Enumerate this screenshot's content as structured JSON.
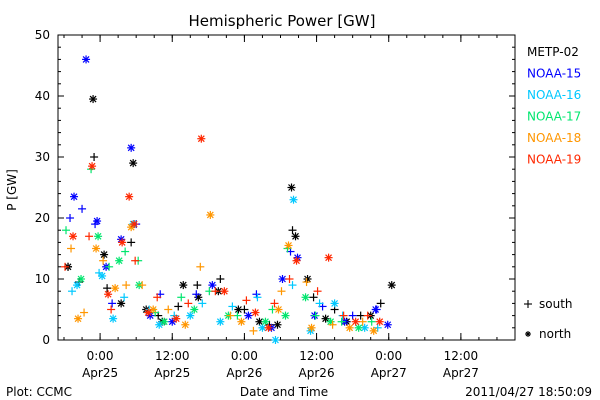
{
  "chart_data": {
    "type": "scatter",
    "title": "Hemispheric Power [GW]",
    "xlabel": "Date and Time",
    "ylabel": "P [GW]",
    "xlim": [
      "2011-04-24T17:00",
      "2011-04-27T21:00"
    ],
    "ylim": [
      0,
      50
    ],
    "y_ticks": [
      0,
      10,
      20,
      30,
      40,
      50
    ],
    "x_ticks": [
      {
        "time": "2011-04-25T00:00",
        "label1": "0:00",
        "label2": "Apr25"
      },
      {
        "time": "2011-04-25T12:00",
        "label1": "12:00",
        "label2": "Apr25"
      },
      {
        "time": "2011-04-26T00:00",
        "label1": "0:00",
        "label2": "Apr26"
      },
      {
        "time": "2011-04-26T12:00",
        "label1": "12:00",
        "label2": "Apr26"
      },
      {
        "time": "2011-04-27T00:00",
        "label1": "0:00",
        "label2": "Apr27"
      },
      {
        "time": "2011-04-27T12:00",
        "label1": "12:00",
        "label2": "Apr27"
      }
    ],
    "grid": false,
    "legend_position": "right",
    "marker_legend": [
      {
        "marker": "+",
        "label": "south"
      },
      {
        "marker": "*",
        "label": "north"
      }
    ],
    "series": [
      {
        "name": "METP-02",
        "color": "#000000",
        "south": [
          [
            "2011-04-24T18:40",
            12.0
          ],
          [
            "2011-04-24T20:30",
            9.5
          ],
          [
            "2011-04-24T23:00",
            30.0
          ],
          [
            "2011-04-25T01:10",
            8.5
          ],
          [
            "2011-04-25T05:10",
            16.0
          ],
          [
            "2011-04-25T09:40",
            4.0
          ],
          [
            "2011-04-25T13:00",
            5.5
          ],
          [
            "2011-04-25T16:10",
            9.0
          ],
          [
            "2011-04-25T20:00",
            10.0
          ],
          [
            "2011-04-26T00:00",
            5.0
          ],
          [
            "2011-04-26T04:10",
            2.5
          ],
          [
            "2011-04-26T08:00",
            18.0
          ],
          [
            "2011-04-26T11:30",
            7.0
          ],
          [
            "2011-04-26T15:00",
            5.0
          ],
          [
            "2011-04-26T19:20",
            4.0
          ],
          [
            "2011-04-26T22:40",
            6.0
          ]
        ],
        "north": [
          [
            "2011-04-24T18:40",
            12.0
          ],
          [
            "2011-04-24T22:50",
            39.5
          ],
          [
            "2011-04-25T00:40",
            14.0
          ],
          [
            "2011-04-25T03:30",
            6.0
          ],
          [
            "2011-04-25T05:30",
            29.0
          ],
          [
            "2011-04-25T07:40",
            5.0
          ],
          [
            "2011-04-25T10:20",
            3.0
          ],
          [
            "2011-04-25T13:50",
            9.0
          ],
          [
            "2011-04-25T16:20",
            7.0
          ],
          [
            "2011-04-25T19:40",
            8.0
          ],
          [
            "2011-04-25T23:00",
            5.0
          ],
          [
            "2011-04-26T02:30",
            3.0
          ],
          [
            "2011-04-26T05:30",
            2.5
          ],
          [
            "2011-04-26T07:50",
            25.0
          ],
          [
            "2011-04-26T08:30",
            17.0
          ],
          [
            "2011-04-26T10:30",
            10.0
          ],
          [
            "2011-04-26T13:30",
            3.5
          ],
          [
            "2011-04-26T17:00",
            3.0
          ],
          [
            "2011-04-26T21:00",
            4.0
          ],
          [
            "2011-04-27T00:30",
            9.0
          ]
        ]
      },
      {
        "name": "NOAA-15",
        "color": "#0000ff",
        "south": [
          [
            "2011-04-24T19:00",
            20.0
          ],
          [
            "2011-04-24T21:00",
            21.5
          ],
          [
            "2011-04-24T23:10",
            19.0
          ],
          [
            "2011-04-25T02:00",
            6.0
          ],
          [
            "2011-04-25T06:00",
            19.0
          ],
          [
            "2011-04-25T10:00",
            7.5
          ],
          [
            "2011-04-25T16:00",
            7.5
          ],
          [
            "2011-04-26T02:00",
            7.5
          ],
          [
            "2011-04-26T07:40",
            14.5
          ],
          [
            "2011-04-26T13:00",
            5.5
          ],
          [
            "2011-04-26T18:00",
            4.0
          ],
          [
            "2011-04-26T22:00",
            5.0
          ]
        ],
        "north": [
          [
            "2011-04-24T19:40",
            23.5
          ],
          [
            "2011-04-24T21:40",
            46.0
          ],
          [
            "2011-04-24T23:30",
            19.5
          ],
          [
            "2011-04-25T01:00",
            12.0
          ],
          [
            "2011-04-25T03:30",
            16.5
          ],
          [
            "2011-04-25T05:10",
            31.5
          ],
          [
            "2011-04-25T08:20",
            4.0
          ],
          [
            "2011-04-25T12:00",
            3.0
          ],
          [
            "2011-04-25T18:40",
            9.0
          ],
          [
            "2011-04-26T00:40",
            4.0
          ],
          [
            "2011-04-26T04:30",
            2.0
          ],
          [
            "2011-04-26T06:20",
            10.0
          ],
          [
            "2011-04-26T08:50",
            13.5
          ],
          [
            "2011-04-26T11:40",
            4.0
          ],
          [
            "2011-04-26T16:40",
            3.0
          ],
          [
            "2011-04-26T21:50",
            5.0
          ],
          [
            "2011-04-26T23:50",
            2.5
          ]
        ]
      },
      {
        "name": "NOAA-16",
        "color": "#00c8ff",
        "south": [
          [
            "2011-04-24T19:20",
            8.0
          ],
          [
            "2011-04-24T23:50",
            11.0
          ],
          [
            "2011-04-25T04:00",
            7.0
          ],
          [
            "2011-04-25T08:10",
            5.0
          ],
          [
            "2011-04-25T12:20",
            4.0
          ],
          [
            "2011-04-25T17:00",
            6.0
          ],
          [
            "2011-04-25T22:00",
            5.5
          ],
          [
            "2011-04-26T02:10",
            7.0
          ],
          [
            "2011-04-26T08:00",
            9.0
          ],
          [
            "2011-04-26T12:30",
            6.0
          ],
          [
            "2011-04-26T16:20",
            4.0
          ],
          [
            "2011-04-26T22:10",
            2.0
          ]
        ],
        "north": [
          [
            "2011-04-24T20:10",
            9.0
          ],
          [
            "2011-04-25T00:20",
            10.5
          ],
          [
            "2011-04-25T02:10",
            3.5
          ],
          [
            "2011-04-25T05:30",
            19.0
          ],
          [
            "2011-04-25T09:50",
            2.5
          ],
          [
            "2011-04-25T15:00",
            4.0
          ],
          [
            "2011-04-25T20:00",
            3.0
          ],
          [
            "2011-04-26T03:00",
            2.0
          ],
          [
            "2011-04-26T05:10",
            0.0
          ],
          [
            "2011-04-26T08:10",
            23.0
          ],
          [
            "2011-04-26T11:00",
            1.5
          ],
          [
            "2011-04-26T15:00",
            6.0
          ],
          [
            "2011-04-26T20:00",
            2.0
          ]
        ]
      },
      {
        "name": "NOAA-17",
        "color": "#00e66e",
        "south": [
          [
            "2011-04-24T18:20",
            18.0
          ],
          [
            "2011-04-24T22:30",
            28.0
          ],
          [
            "2011-04-25T01:30",
            12.0
          ],
          [
            "2011-04-25T04:10",
            14.5
          ],
          [
            "2011-04-25T06:20",
            13.0
          ],
          [
            "2011-04-25T09:10",
            4.5
          ],
          [
            "2011-04-25T13:30",
            7.0
          ],
          [
            "2011-04-25T18:10",
            8.0
          ],
          [
            "2011-04-25T22:50",
            4.0
          ],
          [
            "2011-04-26T04:40",
            5.0
          ],
          [
            "2011-04-26T07:10",
            15.0
          ],
          [
            "2011-04-26T11:50",
            4.0
          ],
          [
            "2011-04-26T16:10",
            3.0
          ],
          [
            "2011-04-26T21:10",
            3.0
          ]
        ],
        "north": [
          [
            "2011-04-24T20:50",
            10.0
          ],
          [
            "2011-04-24T23:40",
            17.0
          ],
          [
            "2011-04-25T03:10",
            13.0
          ],
          [
            "2011-04-25T06:30",
            9.0
          ],
          [
            "2011-04-25T10:40",
            3.0
          ],
          [
            "2011-04-25T15:40",
            5.0
          ],
          [
            "2011-04-25T21:20",
            4.0
          ],
          [
            "2011-04-26T03:30",
            3.0
          ],
          [
            "2011-04-26T06:50",
            4.0
          ],
          [
            "2011-04-26T10:10",
            7.0
          ],
          [
            "2011-04-26T14:20",
            3.0
          ],
          [
            "2011-04-26T19:00",
            2.0
          ]
        ]
      },
      {
        "name": "NOAA-18",
        "color": "#ff9600",
        "south": [
          [
            "2011-04-24T19:10",
            15.0
          ],
          [
            "2011-04-24T21:20",
            4.5
          ],
          [
            "2011-04-25T00:30",
            13.0
          ],
          [
            "2011-04-25T04:20",
            9.0
          ],
          [
            "2011-04-25T07:00",
            9.0
          ],
          [
            "2011-04-25T11:20",
            5.0
          ],
          [
            "2011-04-25T16:40",
            12.0
          ],
          [
            "2011-04-25T21:40",
            4.0
          ],
          [
            "2011-04-26T01:30",
            1.5
          ],
          [
            "2011-04-26T06:10",
            8.0
          ],
          [
            "2011-04-26T10:20",
            9.5
          ],
          [
            "2011-04-26T14:40",
            2.5
          ],
          [
            "2011-04-26T19:40",
            3.0
          ]
        ],
        "north": [
          [
            "2011-04-24T20:20",
            3.5
          ],
          [
            "2011-04-24T23:20",
            15.0
          ],
          [
            "2011-04-25T02:30",
            8.5
          ],
          [
            "2011-04-25T05:10",
            18.5
          ],
          [
            "2011-04-25T08:50",
            5.0
          ],
          [
            "2011-04-25T14:10",
            2.5
          ],
          [
            "2011-04-25T18:20",
            20.5
          ],
          [
            "2011-04-25T23:30",
            3.0
          ],
          [
            "2011-04-26T05:40",
            5.0
          ],
          [
            "2011-04-26T07:20",
            15.5
          ],
          [
            "2011-04-26T11:10",
            2.0
          ],
          [
            "2011-04-26T17:30",
            2.0
          ],
          [
            "2011-04-26T21:30",
            1.5
          ]
        ]
      },
      {
        "name": "NOAA-19",
        "color": "#ff2800",
        "south": [
          [
            "2011-04-24T18:10",
            12.0
          ],
          [
            "2011-04-24T22:10",
            17.0
          ],
          [
            "2011-04-25T01:50",
            5.0
          ],
          [
            "2011-04-25T05:50",
            13.0
          ],
          [
            "2011-04-25T09:30",
            7.0
          ],
          [
            "2011-04-25T14:40",
            6.0
          ],
          [
            "2011-04-25T19:10",
            8.0
          ],
          [
            "2011-04-26T00:20",
            6.5
          ],
          [
            "2011-04-26T05:00",
            6.0
          ],
          [
            "2011-04-26T07:30",
            10.0
          ],
          [
            "2011-04-26T12:10",
            8.0
          ],
          [
            "2011-04-26T16:30",
            4.0
          ],
          [
            "2011-04-26T20:30",
            4.0
          ]
        ],
        "north": [
          [
            "2011-04-24T19:30",
            17.0
          ],
          [
            "2011-04-24T22:40",
            28.5
          ],
          [
            "2011-04-25T01:20",
            7.5
          ],
          [
            "2011-04-25T03:40",
            16.0
          ],
          [
            "2011-04-25T04:50",
            23.5
          ],
          [
            "2011-04-25T05:40",
            19.0
          ],
          [
            "2011-04-25T08:00",
            4.5
          ],
          [
            "2011-04-25T12:40",
            3.5
          ],
          [
            "2011-04-25T16:50",
            33.0
          ],
          [
            "2011-04-25T20:40",
            8.0
          ],
          [
            "2011-04-26T01:50",
            4.5
          ],
          [
            "2011-04-26T04:00",
            2.0
          ],
          [
            "2011-04-26T08:40",
            13.0
          ],
          [
            "2011-04-26T14:00",
            13.5
          ],
          [
            "2011-04-26T18:30",
            3.0
          ],
          [
            "2011-04-26T22:30",
            3.0
          ]
        ]
      }
    ]
  },
  "footer": {
    "left": "Plot: CCMC",
    "right": "2011/04/27 18:50:09"
  }
}
